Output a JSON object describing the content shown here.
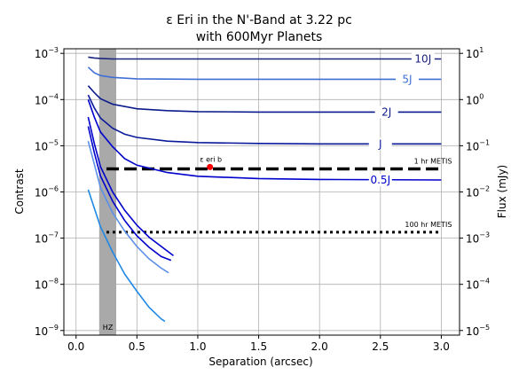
{
  "chart_data": {
    "type": "line",
    "title": "ε Eri in the N'-Band at 3.22 pc",
    "subtitle": "with 600Myr Planets",
    "xlabel": "Separation (arcsec)",
    "ylabel": "Contrast",
    "y2label": "Flux (mJy)",
    "xlim": [
      -0.1,
      3.15
    ],
    "ylim_log10": [
      -9.1,
      -2.9
    ],
    "y2_offset_log10": 4,
    "grid": true,
    "x_ticks": [
      {
        "v": 0.0,
        "label": "0.0"
      },
      {
        "v": 0.5,
        "label": "0.5"
      },
      {
        "v": 1.0,
        "label": "1.0"
      },
      {
        "v": 1.5,
        "label": "1.5"
      },
      {
        "v": 2.0,
        "label": "2.0"
      },
      {
        "v": 2.5,
        "label": "2.5"
      },
      {
        "v": 3.0,
        "label": "3.0"
      }
    ],
    "y_ticks": [
      {
        "e": -9,
        "label": "−9"
      },
      {
        "e": -8,
        "label": "−8"
      },
      {
        "e": -7,
        "label": "−7"
      },
      {
        "e": -6,
        "label": "−6"
      },
      {
        "e": -5,
        "label": "−5"
      },
      {
        "e": -4,
        "label": "−4"
      },
      {
        "e": -3,
        "label": "−3"
      }
    ],
    "y2_ticks": [
      {
        "e": -5,
        "label": "−5"
      },
      {
        "e": -4,
        "label": "−4"
      },
      {
        "e": -3,
        "label": "−3"
      },
      {
        "e": -2,
        "label": "−2"
      },
      {
        "e": -1,
        "label": "−1"
      },
      {
        "e": 0,
        "label": "0"
      },
      {
        "e": 1,
        "label": "1"
      }
    ],
    "hz_band": {
      "x0": 0.19,
      "x1": 0.33,
      "label": "HZ"
    },
    "series": [
      {
        "name": "10J",
        "color": "#1a237e",
        "x": [
          0.1,
          0.15,
          0.2,
          0.3,
          0.5,
          1.0,
          3.0
        ],
        "log10y": [
          -3.08,
          -3.1,
          -3.11,
          -3.12,
          -3.12,
          -3.12,
          -3.12
        ]
      },
      {
        "name": "5J",
        "color": "#3f6fd4",
        "x": [
          0.1,
          0.15,
          0.2,
          0.3,
          0.5,
          1.0,
          2.0,
          3.0
        ],
        "log10y": [
          -3.3,
          -3.42,
          -3.48,
          -3.52,
          -3.55,
          -3.56,
          -3.56,
          -3.56
        ]
      },
      {
        "name": "2J",
        "color": "#0a1a8c",
        "x": [
          0.1,
          0.15,
          0.2,
          0.3,
          0.5,
          0.75,
          1.0,
          1.5,
          2.0,
          3.0
        ],
        "log10y": [
          -3.7,
          -3.85,
          -3.98,
          -4.1,
          -4.2,
          -4.24,
          -4.26,
          -4.27,
          -4.27,
          -4.27
        ]
      },
      {
        "name": "J",
        "color": "#0a1a9a",
        "x": [
          0.1,
          0.15,
          0.2,
          0.3,
          0.4,
          0.5,
          0.75,
          1.0,
          1.5,
          2.0,
          3.0
        ],
        "log10y": [
          -3.9,
          -4.18,
          -4.4,
          -4.62,
          -4.75,
          -4.82,
          -4.9,
          -4.93,
          -4.95,
          -4.96,
          -4.96
        ]
      },
      {
        "name": "0.5J",
        "color": "#0000cc",
        "x": [
          0.1,
          0.15,
          0.2,
          0.3,
          0.4,
          0.5,
          0.75,
          1.0,
          1.5,
          2.0,
          3.0
        ],
        "log10y": [
          -4.0,
          -4.38,
          -4.7,
          -5.02,
          -5.28,
          -5.42,
          -5.58,
          -5.66,
          -5.71,
          -5.73,
          -5.74
        ]
      },
      {
        "name": "",
        "color": "#0000cc",
        "x": [
          0.1,
          0.15,
          0.2,
          0.3,
          0.4,
          0.5,
          0.6,
          0.7,
          0.8
        ],
        "log10y": [
          -4.38,
          -4.95,
          -5.45,
          -6.0,
          -6.4,
          -6.72,
          -6.98,
          -7.18,
          -7.38
        ]
      },
      {
        "name": "",
        "color": "#0000cc",
        "x": [
          0.1,
          0.15,
          0.2,
          0.3,
          0.4,
          0.5,
          0.6,
          0.7,
          0.78
        ],
        "log10y": [
          -4.58,
          -5.15,
          -5.65,
          -6.2,
          -6.62,
          -6.95,
          -7.2,
          -7.4,
          -7.48
        ]
      },
      {
        "name": "",
        "color": "#5b8fe8",
        "x": [
          0.1,
          0.15,
          0.2,
          0.3,
          0.4,
          0.5,
          0.6,
          0.7,
          0.76
        ],
        "log10y": [
          -4.9,
          -5.4,
          -5.9,
          -6.45,
          -6.85,
          -7.18,
          -7.45,
          -7.65,
          -7.75
        ]
      },
      {
        "name": "",
        "color": "#1e88e5",
        "x": [
          0.1,
          0.15,
          0.2,
          0.3,
          0.4,
          0.5,
          0.6,
          0.7,
          0.73
        ],
        "log10y": [
          -5.95,
          -6.35,
          -6.75,
          -7.3,
          -7.78,
          -8.15,
          -8.5,
          -8.75,
          -8.8
        ]
      }
    ],
    "limits": [
      {
        "name": "1 hr METIS",
        "style": "dashed",
        "log10y": -5.5,
        "x0": 0.25,
        "x1": 3.0
      },
      {
        "name": "100 hr METIS",
        "style": "dotted",
        "log10y": -6.87,
        "x0": 0.25,
        "x1": 3.0
      }
    ],
    "annotations": [
      {
        "label": "ε eri b",
        "x": 1.1,
        "log10y": -5.46,
        "color": "#ff0000"
      }
    ]
  }
}
